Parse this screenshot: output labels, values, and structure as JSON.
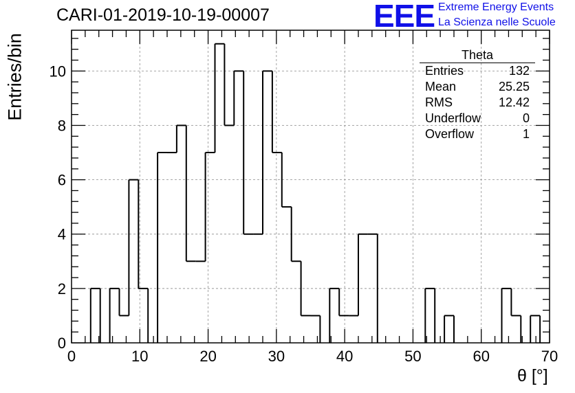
{
  "header": {
    "run_title": "CARI-01-2019-10-19-00007",
    "logo_text": "EEE",
    "brand_line1": "Extreme Energy Events",
    "brand_line2": "La Scienza nelle Scuole"
  },
  "stats_box": {
    "title": "Theta",
    "rows": [
      {
        "label": "Entries",
        "value": "132"
      },
      {
        "label": "Mean",
        "value": "25.25"
      },
      {
        "label": "RMS",
        "value": "12.42"
      },
      {
        "label": "Underflow",
        "value": "0"
      },
      {
        "label": "Overflow",
        "value": "1"
      }
    ]
  },
  "chart_data": {
    "type": "bar",
    "style": "step-histogram",
    "xlabel": "θ [°]",
    "ylabel": "Entries/bin",
    "xlim": [
      0,
      70
    ],
    "ylim": [
      0,
      11.5
    ],
    "xticks": [
      0,
      10,
      20,
      30,
      40,
      50,
      60,
      70
    ],
    "yticks": [
      0,
      2,
      4,
      6,
      8,
      10
    ],
    "grid": true,
    "bin_width": 1.4,
    "bin_edges_start": 0,
    "values": [
      0,
      0,
      2,
      0,
      2,
      1,
      6,
      2,
      0,
      7,
      7,
      8,
      3,
      3,
      7,
      11,
      8,
      10,
      4,
      4,
      10,
      7,
      5,
      3,
      1,
      1,
      0,
      2,
      1,
      1,
      4,
      4,
      0,
      0,
      0,
      0,
      0,
      2,
      0,
      1,
      0,
      0,
      0,
      0,
      0,
      2,
      1,
      0,
      1
    ],
    "line_color": "#000000"
  }
}
